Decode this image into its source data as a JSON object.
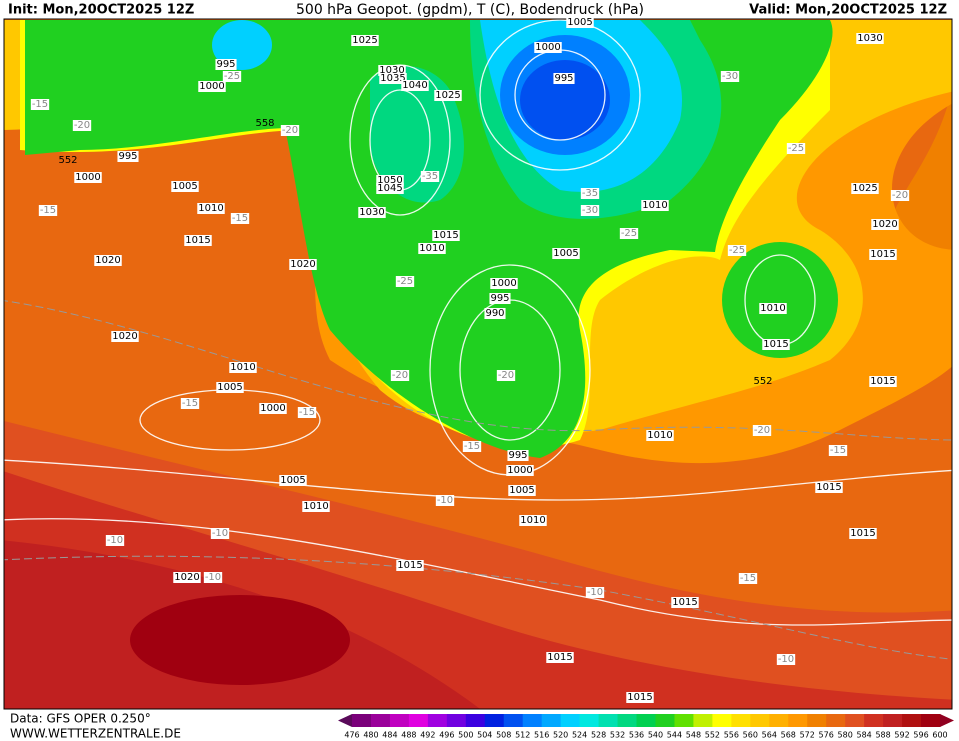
{
  "header": {
    "init": "Init: Mon,20OCT2025 12Z",
    "title": "500 hPa Geopot. (gpdm), T (C), Bodendruck (hPa)",
    "valid": "Valid: Mon,20OCT2025 12Z"
  },
  "footer": {
    "data": "Data: GFS OPER 0.250°",
    "site": "WWW.WETTERZENTRALE.DE"
  },
  "map": {
    "pressure_labels": [
      1025,
      1005,
      1000,
      995,
      995,
      1000,
      1030,
      1035,
      1040,
      1025,
      1030,
      995,
      1000,
      1005,
      1010,
      1015,
      1050,
      1045,
      1030,
      1010,
      1015,
      1005,
      1010,
      1025,
      1020,
      1015,
      1020,
      1020,
      1000,
      995,
      990,
      1010,
      1015,
      1020,
      1010,
      1005,
      1000,
      1015,
      1010,
      995,
      1000,
      1005,
      1005,
      1010,
      1010,
      1015,
      1015,
      1015,
      1020,
      1015,
      1015,
      1015
    ],
    "temperature_labels": [
      -15,
      -25,
      -20,
      -20,
      -30,
      -25,
      -20,
      -35,
      -35,
      -30,
      -25,
      -15,
      -15,
      -25,
      -25,
      -20,
      -20,
      -15,
      -15,
      -15,
      -10,
      -20,
      -15,
      -10,
      -10,
      -10,
      -15,
      -10,
      -10
    ],
    "height_labels": [
      552,
      552,
      558
    ]
  },
  "colorbar": {
    "ticks": [
      476,
      480,
      484,
      488,
      492,
      496,
      500,
      504,
      508,
      512,
      516,
      520,
      524,
      528,
      532,
      536,
      540,
      544,
      548,
      552,
      556,
      560,
      564,
      568,
      572,
      576,
      580,
      584,
      588,
      592,
      596,
      600
    ],
    "colors": [
      "#5a0a5a",
      "#7a007a",
      "#9a009a",
      "#c000c0",
      "#e000e0",
      "#a000e0",
      "#7000e0",
      "#3a00e0",
      "#0020e0",
      "#0050f0",
      "#0080ff",
      "#00a8ff",
      "#00d0ff",
      "#00e8e0",
      "#00e0b0",
      "#00d880",
      "#00d050",
      "#20d020",
      "#60e000",
      "#c0f000",
      "#ffff00",
      "#ffe000",
      "#ffc800",
      "#ffb000",
      "#ff9800",
      "#f08000",
      "#e86810",
      "#e05020",
      "#d03020",
      "#c02020",
      "#b01010",
      "#a00010",
      "#900020"
    ]
  }
}
